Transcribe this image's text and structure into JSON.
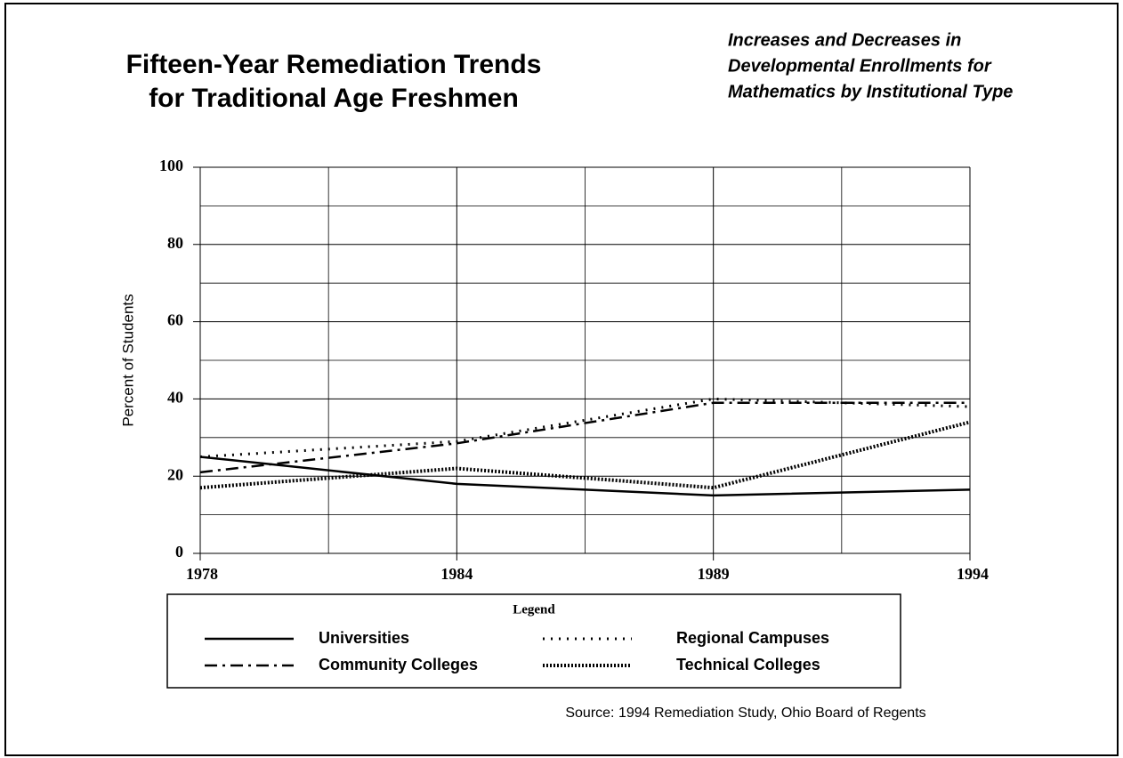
{
  "chart_data": {
    "type": "line",
    "title": [
      "Fifteen-Year Remediation Trends",
      "for Traditional Age Freshmen"
    ],
    "subtitle": [
      "Increases and Decreases in",
      "Developmental Enrollments for",
      "Mathematics by Institutional Type"
    ],
    "y_label": "Percent of Students",
    "categories": [
      "1978",
      "1984",
      "1989",
      "1994"
    ],
    "series": [
      {
        "name": "Universities",
        "color": "#000000",
        "line_style": "solid",
        "values": [
          25,
          18,
          15,
          16.5
        ]
      },
      {
        "name": "Community Colleges",
        "color": "#000000",
        "line_style": "dashdot",
        "values": [
          21,
          28.5,
          39,
          39
        ]
      },
      {
        "name": "Regional Campuses",
        "color": "#000000",
        "line_style": "dotted",
        "values": [
          25,
          29,
          40,
          38
        ]
      },
      {
        "name": "Technical Colleges",
        "color": "#000000",
        "line_style": "dense-dotted",
        "values": [
          17,
          22,
          17,
          34
        ]
      }
    ],
    "ylim": [
      0,
      100
    ],
    "yticks": [
      0,
      20,
      40,
      60,
      80,
      100
    ],
    "minor_yticks": [
      10,
      30,
      50,
      70,
      90
    ],
    "grid": true,
    "legend_title": "Legend",
    "source": "Source: 1994 Remediation Study, Ohio Board of Regents"
  }
}
